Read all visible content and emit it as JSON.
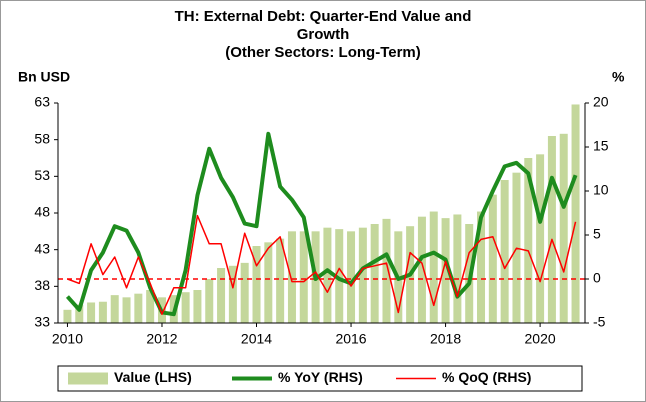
{
  "chart_data": {
    "type": "bar_line",
    "title": "TH: External Debt: Quarter-End Value and Growth",
    "subtitle": "(Other Sectors: Long-Term)",
    "y_label": "Bn USD",
    "y2_label": "%",
    "x": [
      2010,
      2010.25,
      2010.5,
      2010.75,
      2011,
      2011.25,
      2011.5,
      2011.75,
      2012,
      2012.25,
      2012.5,
      2012.75,
      2013,
      2013.25,
      2013.5,
      2013.75,
      2014,
      2014.25,
      2014.5,
      2014.75,
      2015,
      2015.25,
      2015.5,
      2015.75,
      2016,
      2016.25,
      2016.5,
      2016.75,
      2017,
      2017.25,
      2017.5,
      2017.75,
      2018,
      2018.25,
      2018.5,
      2018.75,
      2019,
      2019.25,
      2019.5,
      2019.75,
      2020,
      2020.25,
      2020.5,
      2020.75
    ],
    "xlim": [
      2009.8,
      2020.95
    ],
    "xticks": [
      2010,
      2012,
      2014,
      2016,
      2018,
      2020
    ],
    "ylim": [
      33,
      63
    ],
    "yticks": [
      33,
      38,
      43,
      48,
      53,
      58,
      63
    ],
    "y2lim": [
      -5,
      20
    ],
    "y2ticks": [
      -5,
      0,
      5,
      10,
      15,
      20
    ],
    "y2_reference_line": 0,
    "series": [
      {
        "name": "Value (LHS)",
        "kind": "bar",
        "color": "#c4d79b",
        "values": [
          34.8,
          35.5,
          35.8,
          35.9,
          36.8,
          36.5,
          37,
          37.5,
          36.5,
          36.8,
          37.2,
          37.5,
          39,
          40.5,
          40.8,
          41.2,
          43.5,
          44,
          44.5,
          45.5,
          45.5,
          45.5,
          46,
          45.8,
          45.5,
          46,
          46.5,
          47.2,
          45.5,
          46.2,
          47.5,
          48.2,
          47.3,
          47.8,
          46.5,
          48.2,
          50.5,
          52.5,
          53.5,
          55.5,
          56,
          58.5,
          58.8,
          62.8
        ]
      },
      {
        "name": "% YoY (RHS)",
        "kind": "line",
        "axis": "y2",
        "color": "#1e8c1e",
        "values": [
          -2,
          -3.5,
          1,
          3,
          6,
          5.5,
          3,
          -1,
          -3.8,
          -4,
          1,
          9.5,
          14.8,
          11.5,
          9.3,
          6.3,
          6,
          16.5,
          10.5,
          9,
          7,
          0,
          1,
          0,
          -0.5,
          1.2,
          2,
          2.8,
          0,
          0.5,
          2.5,
          3,
          2.2,
          -2,
          -0.5,
          7,
          10,
          12.8,
          13.2,
          12,
          6.5,
          11.5,
          8.2,
          11.8
        ]
      },
      {
        "name": "% QoQ (RHS)",
        "kind": "line",
        "axis": "y2",
        "color": "#ff0000",
        "values": [
          0,
          -0.5,
          4,
          0.5,
          2.5,
          -1,
          2.5,
          -0.5,
          -4,
          -1,
          -1,
          7.2,
          4,
          4,
          -1,
          5.2,
          1.5,
          3.5,
          4.8,
          -0.3,
          -0.3,
          0.8,
          -1.5,
          1.2,
          -0.8,
          1.2,
          1.5,
          1.8,
          -3.8,
          3,
          1.8,
          -3,
          2,
          -2,
          3,
          4.5,
          4.8,
          1.2,
          3.5,
          3.2,
          -0.3,
          4.5,
          0.8,
          6.5
        ]
      }
    ]
  }
}
